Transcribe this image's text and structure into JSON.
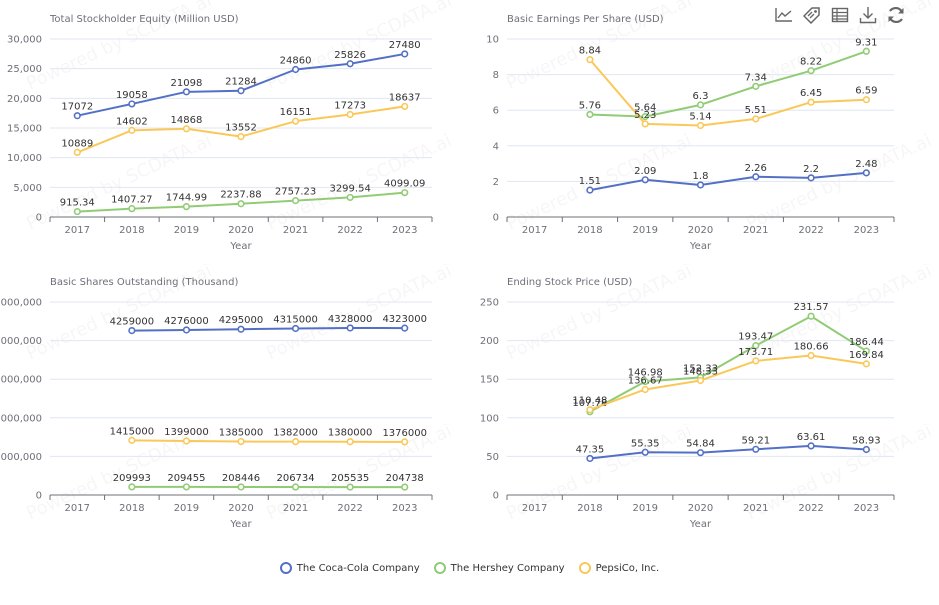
{
  "toolbox": {
    "icons": [
      "line-chart-icon",
      "tag-icon",
      "data-view-icon",
      "download-icon",
      "refresh-icon"
    ]
  },
  "legend": [
    {
      "name": "The Coca-Cola Company",
      "color": "#5470c6"
    },
    {
      "name": "The Hershey Company",
      "color": "#91cc75"
    },
    {
      "name": "PepsiCo, Inc.",
      "color": "#fac858"
    }
  ],
  "watermark": "Powered by SCDATA.ai",
  "chart_data": [
    {
      "type": "line",
      "title": "Total Stockholder Equity (Million USD)",
      "xlabel": "Year",
      "ylabel": "",
      "categories": [
        "2017",
        "2018",
        "2019",
        "2020",
        "2021",
        "2022",
        "2023"
      ],
      "ylim": [
        0,
        30000
      ],
      "yticks": [
        "0",
        "5,000",
        "10,000",
        "15,000",
        "20,000",
        "25,000",
        "30,000"
      ],
      "ytick_values": [
        0,
        5000,
        10000,
        15000,
        20000,
        25000,
        30000
      ],
      "grid": true,
      "series": [
        {
          "name": "The Coca-Cola Company",
          "values": [
            17072,
            19058,
            21098,
            21284,
            24860,
            25826,
            27480
          ],
          "labels": [
            "17072",
            "19058",
            "21098",
            "21284",
            "24860",
            "25826",
            "27480"
          ]
        },
        {
          "name": "The Hershey Company",
          "values": [
            915.34,
            1407.27,
            1744.99,
            2237.88,
            2757.23,
            3299.54,
            4099.09
          ],
          "labels": [
            "915.34",
            "1407.27",
            "1744.99",
            "2237.88",
            "2757.23",
            "3299.54",
            "4099.09"
          ]
        },
        {
          "name": "PepsiCo, Inc.",
          "values": [
            10889,
            14602,
            14868,
            13552,
            16151,
            17273,
            18637
          ],
          "labels": [
            "10889",
            "14602",
            "14868",
            "13552",
            "16151",
            "17273",
            "18637"
          ]
        }
      ]
    },
    {
      "type": "line",
      "title": "Basic Earnings Per Share (USD)",
      "xlabel": "Year",
      "ylabel": "",
      "categories": [
        "2017",
        "2018",
        "2019",
        "2020",
        "2021",
        "2022",
        "2023"
      ],
      "ylim": [
        0,
        10
      ],
      "yticks": [
        "0",
        "2",
        "4",
        "6",
        "8",
        "10"
      ],
      "ytick_values": [
        0,
        2,
        4,
        6,
        8,
        10
      ],
      "grid": true,
      "series": [
        {
          "name": "The Coca-Cola Company",
          "values": [
            null,
            1.51,
            2.09,
            1.8,
            2.26,
            2.2,
            2.48
          ],
          "labels": [
            "",
            "1.51",
            "2.09",
            "1.8",
            "2.26",
            "2.2",
            "2.48"
          ]
        },
        {
          "name": "The Hershey Company",
          "values": [
            null,
            5.76,
            5.64,
            6.3,
            7.34,
            8.22,
            9.31
          ],
          "labels": [
            "",
            "5.76",
            "5.64",
            "6.3",
            "7.34",
            "8.22",
            "9.31"
          ]
        },
        {
          "name": "PepsiCo, Inc.",
          "values": [
            null,
            8.84,
            5.23,
            5.14,
            5.51,
            6.45,
            6.59
          ],
          "labels": [
            "",
            "8.84",
            "5.23",
            "5.14",
            "5.51",
            "6.45",
            "6.59"
          ]
        }
      ]
    },
    {
      "type": "line",
      "title": "Basic Shares Outstanding (Thousand)",
      "xlabel": "Year",
      "ylabel": "",
      "categories": [
        "2017",
        "2018",
        "2019",
        "2020",
        "2021",
        "2022",
        "2023"
      ],
      "ylim": [
        0,
        5000000
      ],
      "yticks": [
        "0",
        "1,000,000",
        "2,000,000",
        "3,000,000",
        "4,000,000",
        "5,000,000"
      ],
      "ytick_values": [
        0,
        1000000,
        2000000,
        3000000,
        4000000,
        5000000
      ],
      "grid": true,
      "series": [
        {
          "name": "The Coca-Cola Company",
          "values": [
            null,
            4259000,
            4276000,
            4295000,
            4315000,
            4328000,
            4323000
          ],
          "labels": [
            "",
            "4259000",
            "4276000",
            "4295000",
            "4315000",
            "4328000",
            "4323000"
          ]
        },
        {
          "name": "The Hershey Company",
          "values": [
            null,
            209993,
            209455,
            208446,
            206734,
            205535,
            204738
          ],
          "labels": [
            "",
            "209993",
            "209455",
            "208446",
            "206734",
            "205535",
            "204738"
          ]
        },
        {
          "name": "PepsiCo, Inc.",
          "values": [
            null,
            1415000,
            1399000,
            1385000,
            1382000,
            1380000,
            1376000
          ],
          "labels": [
            "",
            "1415000",
            "1399000",
            "1385000",
            "1382000",
            "1380000",
            "1376000"
          ]
        }
      ]
    },
    {
      "type": "line",
      "title": "Ending Stock Price (USD)",
      "xlabel": "Year",
      "ylabel": "",
      "categories": [
        "2017",
        "2018",
        "2019",
        "2020",
        "2021",
        "2022",
        "2023"
      ],
      "ylim": [
        0,
        250
      ],
      "yticks": [
        "0",
        "50",
        "100",
        "150",
        "200",
        "250"
      ],
      "ytick_values": [
        0,
        50,
        100,
        150,
        200,
        250
      ],
      "grid": true,
      "series": [
        {
          "name": "The Coca-Cola Company",
          "values": [
            null,
            47.35,
            55.35,
            54.84,
            59.21,
            63.61,
            58.93
          ],
          "labels": [
            "",
            "47.35",
            "55.35",
            "54.84",
            "59.21",
            "63.61",
            "58.93"
          ]
        },
        {
          "name": "The Hershey Company",
          "values": [
            null,
            107.78,
            146.98,
            152.33,
            193.47,
            231.57,
            186.44
          ],
          "labels": [
            "",
            "107.78",
            "146.98",
            "152.33",
            "193.47",
            "231.57",
            "186.44"
          ]
        },
        {
          "name": "PepsiCo, Inc.",
          "values": [
            null,
            110.48,
            136.67,
            148.33,
            173.71,
            180.66,
            169.84
          ],
          "labels": [
            "",
            "110.48",
            "136.67",
            "148.33",
            "173.71",
            "180.66",
            "169.84"
          ]
        }
      ]
    }
  ]
}
